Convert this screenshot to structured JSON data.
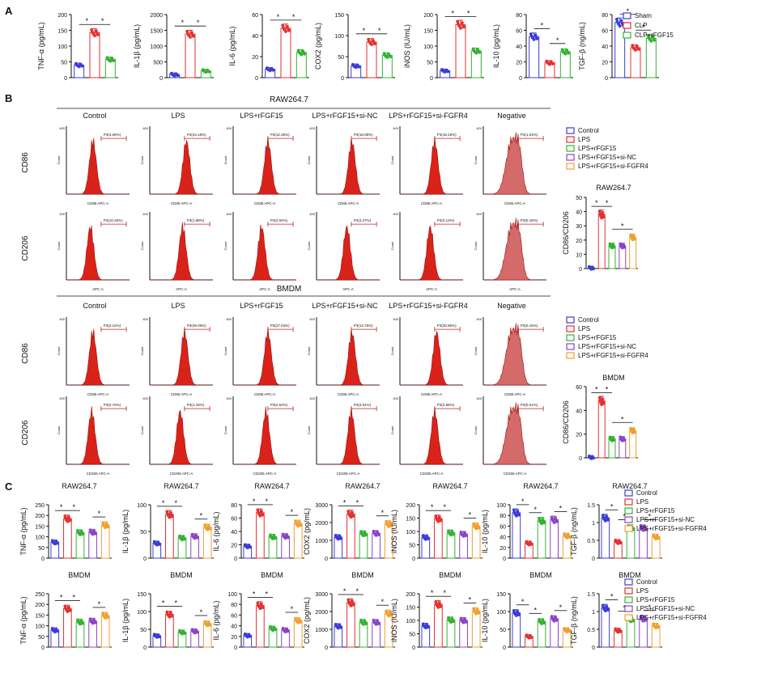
{
  "colors": {
    "sham": "#3b3bd8",
    "clp": "#e33030",
    "rfgf": "#33b233",
    "sinc": "#8a44c8",
    "sifgfr4": "#f0a030",
    "flow_fill": "#d9231a",
    "flow_neg": "#d46a6a"
  },
  "panel_letters": [
    "A",
    "B",
    "C"
  ],
  "star": "*",
  "panelA": {
    "groups": [
      "Sham",
      "CLP",
      "CLP+rFGF15"
    ],
    "charts": [
      {
        "ylabel": "TNF-α (pg/mL)",
        "ticks": [
          0,
          50,
          100,
          150,
          200
        ],
        "max": 200,
        "values": [
          40,
          143,
          58
        ]
      },
      {
        "ylabel": "IL-1β (pg/mL)",
        "ticks": [
          0,
          500,
          1000,
          1500,
          2000
        ],
        "max": 2000,
        "values": [
          100,
          1380,
          215
        ]
      },
      {
        "ylabel": "IL-6 (pg/mL)",
        "ticks": [
          0,
          20,
          40,
          60
        ],
        "max": 60,
        "values": [
          8,
          47,
          24
        ]
      },
      {
        "ylabel": "COX2 (pg/mL)",
        "ticks": [
          0,
          50,
          100,
          150
        ],
        "max": 150,
        "values": [
          28,
          85,
          53
        ]
      },
      {
        "ylabel": "iNOS (IU/mL)",
        "ticks": [
          0,
          50,
          100,
          150,
          200
        ],
        "max": 200,
        "values": [
          22,
          168,
          85
        ]
      },
      {
        "ylabel": "IL-10 (pg/mL)",
        "ticks": [
          0,
          20,
          40,
          60,
          80
        ],
        "max": 80,
        "values": [
          52,
          19,
          33
        ]
      },
      {
        "ylabel": "TGF-β (ng/mL)",
        "ticks": [
          0,
          20,
          40,
          60,
          80
        ],
        "max": 80,
        "values": [
          70,
          38,
          50
        ]
      }
    ]
  },
  "panelB": {
    "raw_title": "RAW264.7",
    "bmdm_title": "BMDM",
    "conditions": [
      "Control",
      "LPS",
      "LPS+rFGF15",
      "LPS+rFGF15+si-NC",
      "LPS+rFGF15+si-FGFR4",
      "Negative"
    ],
    "row_labels": [
      "CD86",
      "CD206",
      "CD86",
      "CD206"
    ],
    "x_labels": [
      "CD86 APC-A",
      "APC-A",
      "CD86 APC-A",
      "CD206 APC-A"
    ],
    "count_label": "Count",
    "gates": [
      [
        "P3(4.06%)",
        "P3(44.18%)",
        "P3(12.45%)",
        "P3(18.09%)",
        "P3(18.15%)",
        "P3(1.04%)"
      ],
      [
        "P3(10.26%)",
        "P3(1.98%)",
        "P3(4.04%)",
        "P3(4.27%)",
        "P3(3.12%)",
        "P3(0.18%)"
      ],
      [
        "P3(3.12%)",
        "P3(49.09%)",
        "P3(27.63%)",
        "P3(13.76%)",
        "P3(30.86%)",
        "P3(0.16%)"
      ],
      [
        "P3(3.70%)",
        "P3(1.16%)",
        "P3(4.52%)",
        "P3(4.61%)",
        "P3(3.58%)",
        "P3(0.01%)"
      ]
    ],
    "y_max_tick": "400",
    "legend": [
      "Control",
      "LPS",
      "LPS+rFGF15",
      "LPS+rFGF15+si-NC",
      "LPS+rFGF15+si-FGFR4"
    ],
    "ratio_charts": [
      {
        "title": "RAW264.7",
        "ylabel": "CD86/CD206",
        "ticks": [
          0,
          10,
          20,
          30,
          40,
          50
        ],
        "max": 50,
        "values": [
          0.5,
          38,
          16,
          16,
          22
        ]
      },
      {
        "title": "BMDM",
        "ylabel": "CD86/CD206",
        "ticks": [
          0,
          20,
          40,
          60
        ],
        "max": 60,
        "values": [
          0.5,
          48,
          16,
          16,
          23
        ]
      }
    ]
  },
  "panelC": {
    "groups": [
      "Control",
      "LPS",
      "LPS+rFGF15",
      "LPS+rFGF15+si-NC",
      "LPS+rFGF15+si-FGFR4"
    ],
    "rows": [
      {
        "title": "RAW264.7",
        "charts": [
          {
            "ylabel": "TNF-α (pg/mL)",
            "ticks": [
              0,
              50,
              100,
              150,
              200,
              250
            ],
            "max": 250,
            "values": [
              75,
              185,
              120,
              122,
              155
            ]
          },
          {
            "ylabel": "IL-1β (pg/mL)",
            "ticks": [
              0,
              50,
              100
            ],
            "max": 100,
            "values": [
              28,
              82,
              38,
              41,
              58
            ]
          },
          {
            "ylabel": "IL-6 (pg/mL)",
            "ticks": [
              0,
              20,
              40,
              60,
              80
            ],
            "max": 80,
            "values": [
              18,
              68,
              32,
              33,
              52
            ]
          },
          {
            "ylabel": "COX2 (pg/mL)",
            "ticks": [
              0,
              1000,
              2000,
              3000
            ],
            "max": 3000,
            "values": [
              1180,
              2480,
              1380,
              1400,
              1920
            ]
          },
          {
            "ylabel": "iNOS (IU/mL)",
            "ticks": [
              0,
              50,
              100,
              150,
              200
            ],
            "max": 200,
            "values": [
              78,
              148,
              95,
              90,
              120
            ]
          },
          {
            "ylabel": "IL-10 (pg/mL)",
            "ticks": [
              0,
              20,
              40,
              60,
              80,
              100
            ],
            "max": 100,
            "values": [
              85,
              28,
              70,
              72,
              42
            ]
          },
          {
            "ylabel": "TGF-β (ng/mL)",
            "ticks": [
              0,
              0.5,
              1.0,
              1.5
            ],
            "max": 1.5,
            "values": [
              1.13,
              0.46,
              0.85,
              0.85,
              0.6
            ]
          }
        ]
      },
      {
        "title": "BMDM",
        "charts": [
          {
            "ylabel": "TNF-α (pg/mL)",
            "ticks": [
              0,
              50,
              100,
              150,
              200,
              250
            ],
            "max": 250,
            "values": [
              80,
              180,
              118,
              122,
              148
            ]
          },
          {
            "ylabel": "IL-1β (pg/mL)",
            "ticks": [
              0,
              50,
              100,
              150
            ],
            "max": 150,
            "values": [
              32,
              92,
              42,
              45,
              66
            ]
          },
          {
            "ylabel": "IL-6 (pg/mL)",
            "ticks": [
              0,
              20,
              40,
              60,
              80,
              100
            ],
            "max": 100,
            "values": [
              22,
              78,
              35,
              32,
              50
            ]
          },
          {
            "ylabel": "COX2 (pg/mL)",
            "ticks": [
              0,
              1000,
              2000,
              3000
            ],
            "max": 3000,
            "values": [
              1180,
              2500,
              1400,
              1400,
              1900
            ]
          },
          {
            "ylabel": "iNOS (IU/mL)",
            "ticks": [
              0,
              50,
              100,
              150,
              200
            ],
            "max": 200,
            "values": [
              80,
              160,
              102,
              100,
              135
            ]
          },
          {
            "ylabel": "IL-10 (pg/mL)",
            "ticks": [
              0,
              50,
              100,
              150
            ],
            "max": 150,
            "values": [
              96,
              30,
              72,
              80,
              48
            ]
          },
          {
            "ylabel": "TGF-β (ng/mL)",
            "ticks": [
              0,
              0.5,
              1.0,
              1.5
            ],
            "max": 1.5,
            "values": [
              1.1,
              0.47,
              0.78,
              0.8,
              0.6
            ]
          }
        ]
      }
    ]
  },
  "chart_data": [
    {
      "type": "bar",
      "title": "Panel A",
      "categories": [
        "Sham",
        "CLP",
        "CLP+rFGF15"
      ],
      "series": [
        {
          "name": "TNF-α (pg/mL)",
          "values": [
            40,
            143,
            58
          ]
        },
        {
          "name": "IL-1β (pg/mL)",
          "values": [
            100,
            1380,
            215
          ]
        },
        {
          "name": "IL-6 (pg/mL)",
          "values": [
            8,
            47,
            24
          ]
        },
        {
          "name": "COX2 (pg/mL)",
          "values": [
            28,
            85,
            53
          ]
        },
        {
          "name": "iNOS (IU/mL)",
          "values": [
            22,
            168,
            85
          ]
        },
        {
          "name": "IL-10 (pg/mL)",
          "values": [
            52,
            19,
            33
          ]
        },
        {
          "name": "TGF-β (ng/mL)",
          "values": [
            70,
            38,
            50
          ]
        }
      ]
    },
    {
      "type": "bar",
      "title": "RAW264.7 CD86/CD206",
      "categories": [
        "Control",
        "LPS",
        "LPS+rFGF15",
        "LPS+rFGF15+si-NC",
        "LPS+rFGF15+si-FGFR4"
      ],
      "values": [
        0.5,
        38,
        16,
        16,
        22
      ],
      "ylim": [
        0,
        50
      ]
    },
    {
      "type": "bar",
      "title": "BMDM CD86/CD206",
      "categories": [
        "Control",
        "LPS",
        "LPS+rFGF15",
        "LPS+rFGF15+si-NC",
        "LPS+rFGF15+si-FGFR4"
      ],
      "values": [
        0.5,
        48,
        16,
        16,
        23
      ],
      "ylim": [
        0,
        60
      ]
    }
  ]
}
